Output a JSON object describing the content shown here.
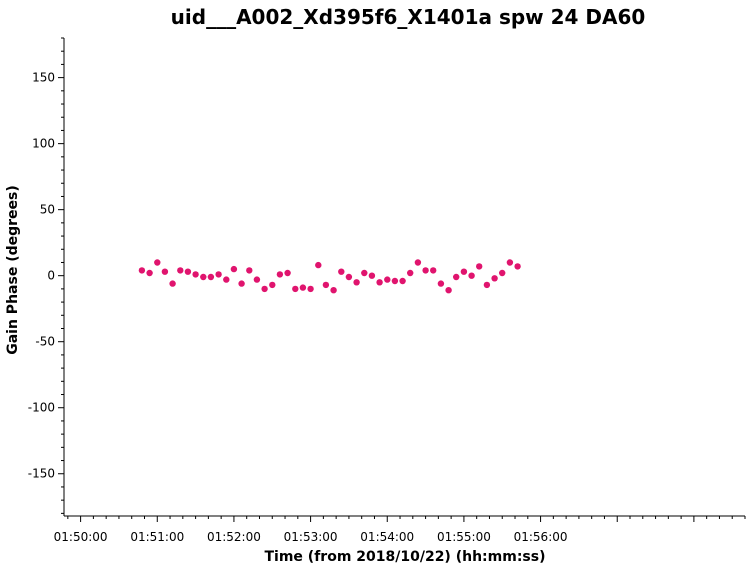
{
  "chart_data": {
    "type": "scatter",
    "title": "uid___A002_Xd395f6_X1401a spw 24 DA60",
    "xlabel": "Time (from 2018/10/22) (hh:mm:ss)",
    "ylabel": "Gain Phase (degrees)",
    "xlim": [
      "01:49:47",
      "01:58:40"
    ],
    "ylim": [
      -182,
      180
    ],
    "x_ticks": [
      "01:50:00",
      "01:51:00",
      "01:52:00",
      "01:53:00",
      "01:54:00",
      "01:55:00",
      "01:56:00"
    ],
    "y_ticks": [
      150,
      100,
      50,
      0,
      -50,
      -100,
      -150
    ],
    "grid": false,
    "marker_color": "#e0146e",
    "series": [
      {
        "x": [
          "01:50:48",
          "01:50:54",
          "01:51:00",
          "01:51:06",
          "01:51:12",
          "01:51:18",
          "01:51:24",
          "01:51:30",
          "01:51:36",
          "01:51:42",
          "01:51:48",
          "01:51:54",
          "01:52:00",
          "01:52:06",
          "01:52:12",
          "01:52:18",
          "01:52:24",
          "01:52:30",
          "01:52:36",
          "01:52:42",
          "01:52:48",
          "01:52:54",
          "01:53:00",
          "01:53:06",
          "01:53:12",
          "01:53:18",
          "01:53:24",
          "01:53:30",
          "01:53:36",
          "01:53:42",
          "01:53:48",
          "01:53:54",
          "01:54:00",
          "01:54:06",
          "01:54:12",
          "01:54:18",
          "01:54:24",
          "01:54:30",
          "01:54:36",
          "01:54:42",
          "01:54:48",
          "01:54:54",
          "01:55:00",
          "01:55:06",
          "01:55:12",
          "01:55:18",
          "01:55:24",
          "01:55:30",
          "01:55:36",
          "01:55:42"
        ],
        "y": [
          4,
          2,
          10,
          3,
          -6,
          4,
          3,
          1,
          -1,
          -1,
          1,
          -3,
          5,
          -6,
          4,
          -3,
          -10,
          -7,
          1,
          2,
          -10,
          -9,
          -10,
          8,
          -7,
          -11,
          3,
          -1,
          -5,
          2,
          0,
          -5,
          -3,
          -4,
          -4,
          2,
          10,
          4,
          4,
          -6,
          -11,
          -1,
          3,
          0,
          7,
          -7,
          -2,
          2,
          10,
          7
        ]
      }
    ]
  }
}
